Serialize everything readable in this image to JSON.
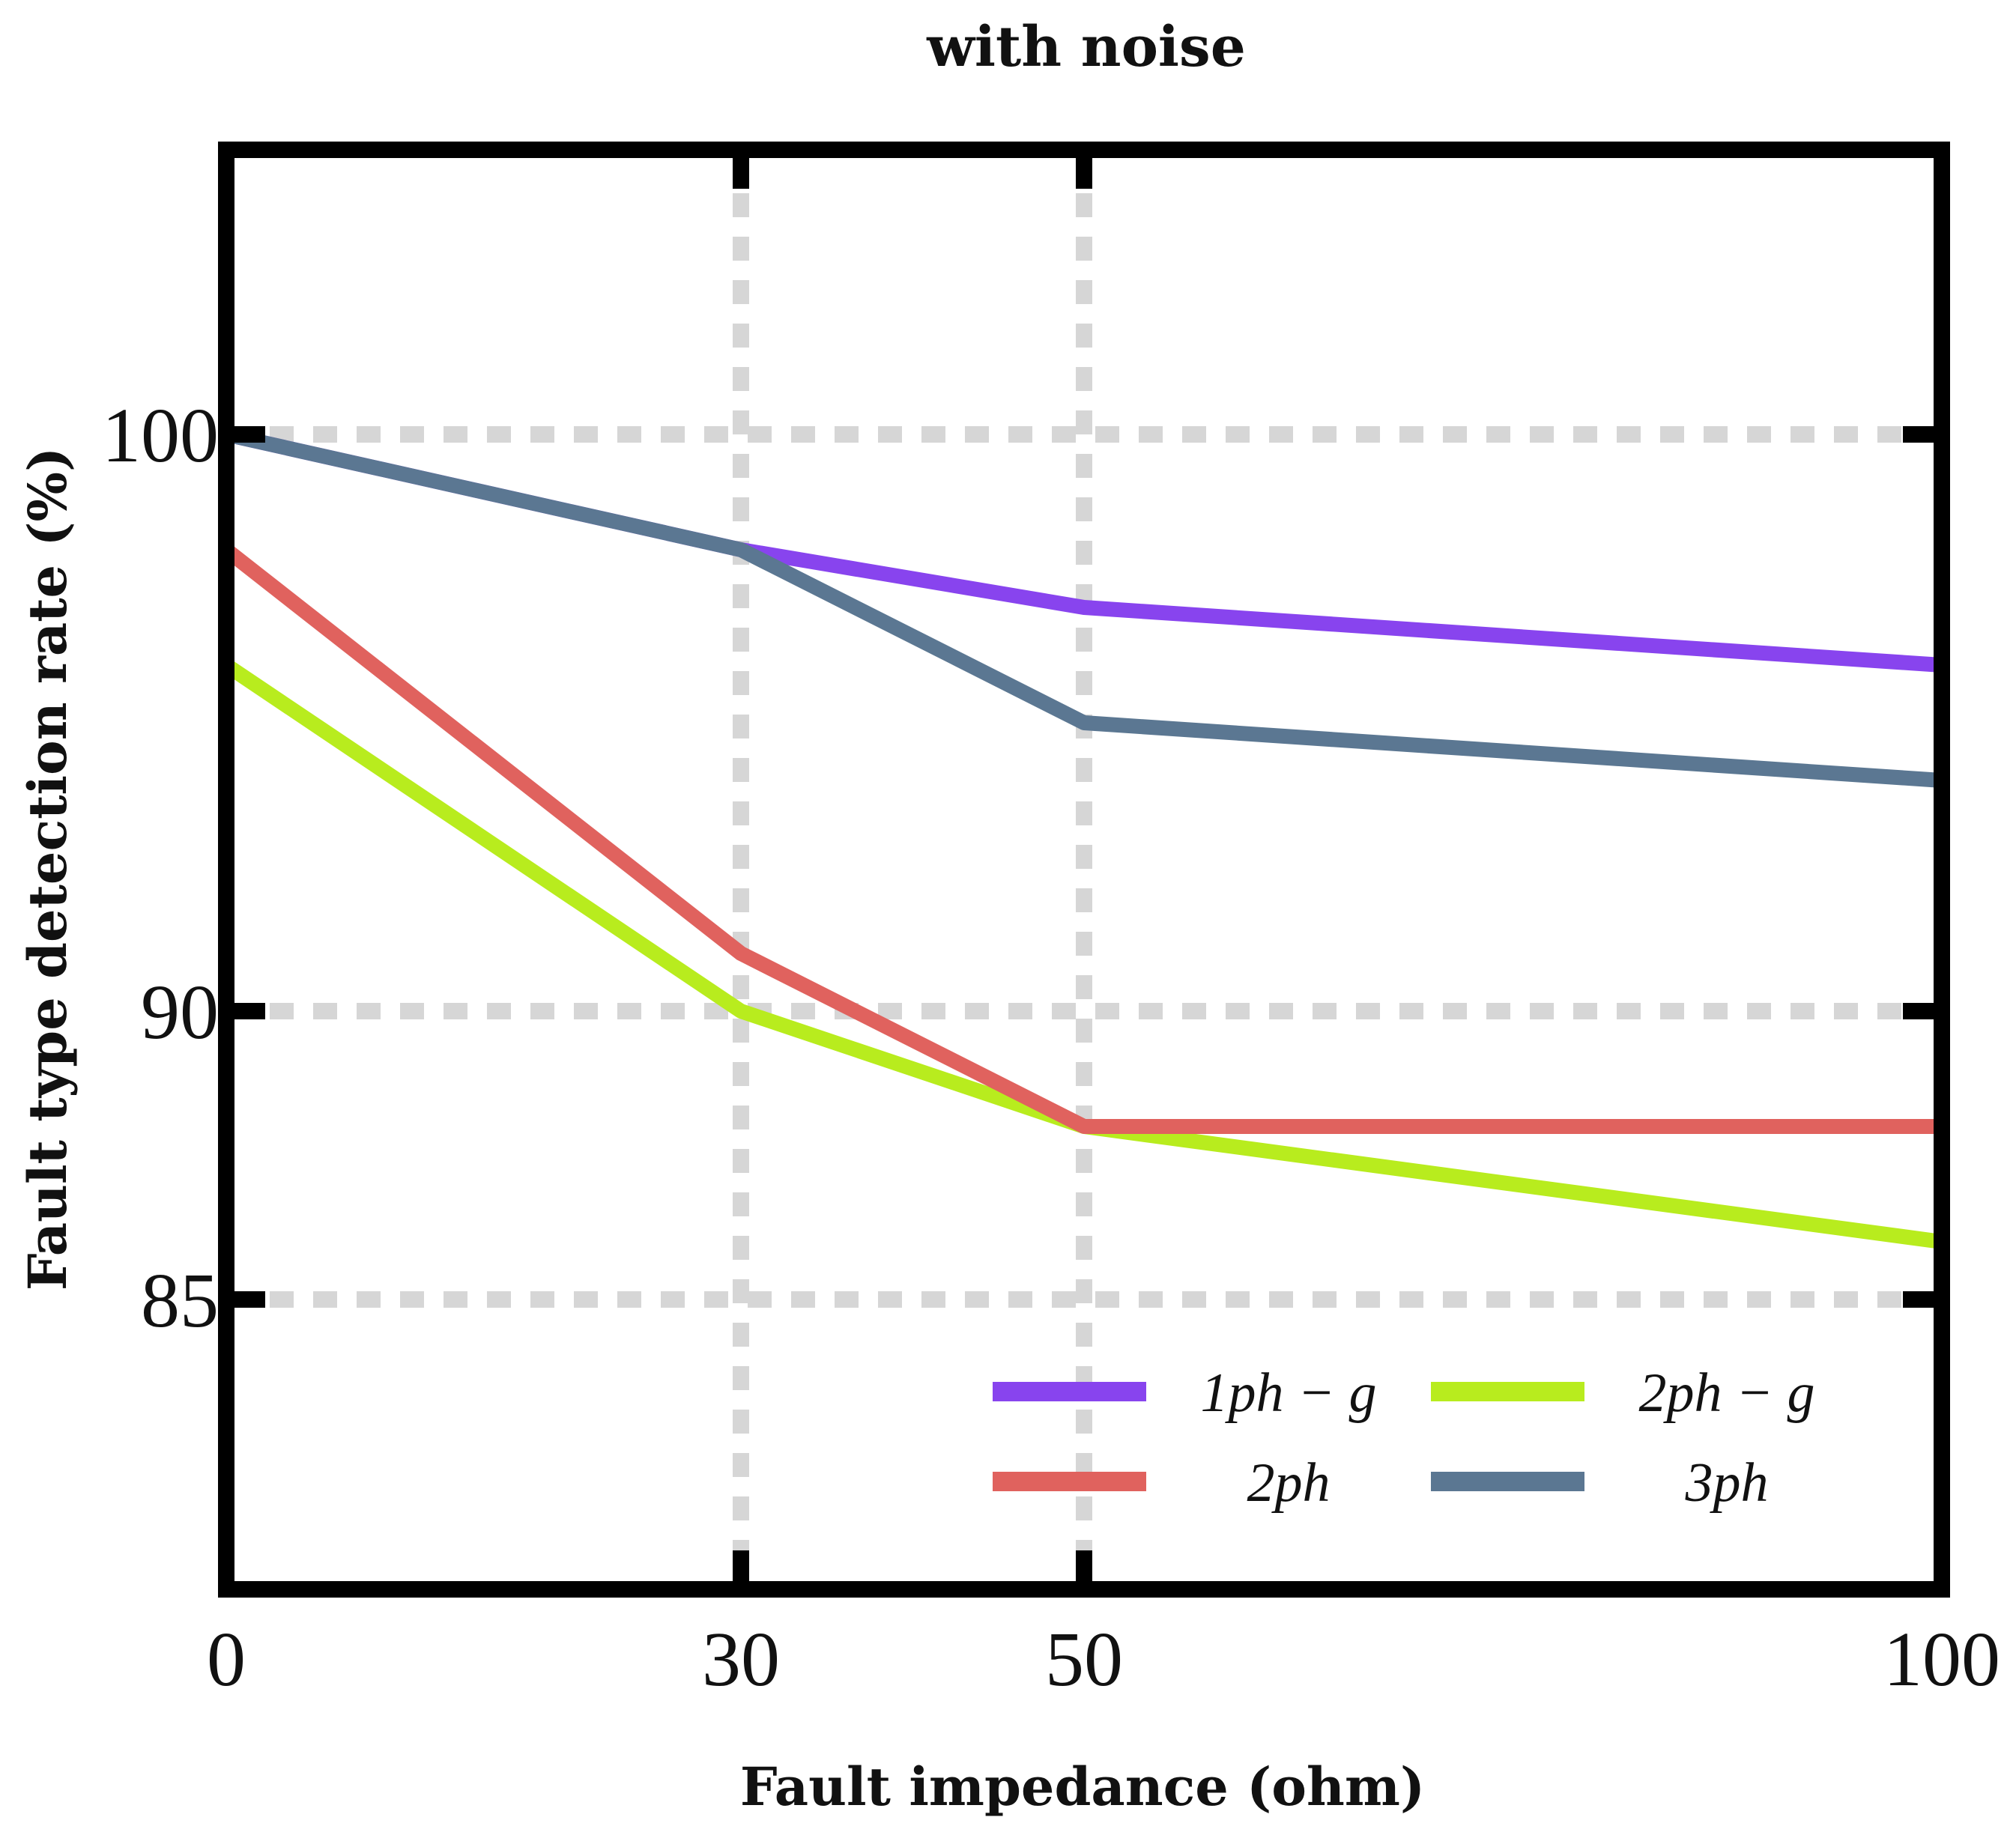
{
  "chart_data": {
    "type": "line",
    "title": "with noise",
    "xlabel": "Fault impedance (ohm)",
    "ylabel": "Fault type detection rate (%)",
    "x": [
      0,
      30,
      50,
      100
    ],
    "xticks": [
      0,
      30,
      50,
      100
    ],
    "xtick_labels": [
      "0",
      "30",
      "50",
      "100"
    ],
    "yticks": [
      85,
      90,
      100
    ],
    "ytick_labels": [
      "85",
      "90",
      "100"
    ],
    "xlim": [
      0,
      100
    ],
    "ylim": [
      80,
      105
    ],
    "grid": true,
    "legend_position": "bottom-right",
    "series": [
      {
        "name": "1ph − g",
        "color": "#8844ee",
        "values": [
          100,
          98,
          97,
          96
        ]
      },
      {
        "name": "2ph − g",
        "color": "#b8ec1e",
        "values": [
          96,
          90,
          88,
          86
        ]
      },
      {
        "name": "2ph",
        "color": "#e0625e",
        "values": [
          98,
          91,
          88,
          88
        ]
      },
      {
        "name": "3ph",
        "color": "#5b7792",
        "values": [
          100,
          98,
          95,
          94
        ]
      }
    ]
  }
}
